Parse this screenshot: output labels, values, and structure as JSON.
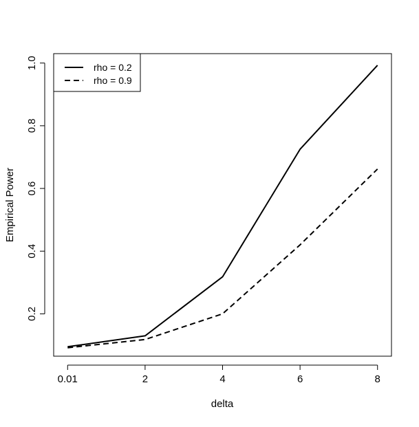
{
  "chart_data": {
    "type": "line",
    "title": "",
    "xlabel": "delta",
    "ylabel": "Empirical Power",
    "x_positions": [
      0,
      1,
      2,
      3,
      4
    ],
    "x_tick_labels": [
      "0.01",
      "2",
      "4",
      "6",
      "8"
    ],
    "y_ticks": [
      0.2,
      0.4,
      0.6,
      0.8,
      1.0
    ],
    "y_tick_labels": [
      "0.2",
      "0.4",
      "0.6",
      "0.8",
      "1.0"
    ],
    "xlim": [
      -0.18,
      4.18
    ],
    "ylim": [
      0.065,
      1.03
    ],
    "grid": false,
    "legend_position": "top-left",
    "series": [
      {
        "name": "rho = 0.2",
        "line_style": "solid",
        "color": "#000000",
        "x": [
          0,
          1,
          2,
          3,
          4
        ],
        "values": [
          0.095,
          0.13,
          0.318,
          0.725,
          0.993
        ]
      },
      {
        "name": "rho = 0.9",
        "line_style": "dashed",
        "color": "#000000",
        "x": [
          0,
          1,
          2,
          3,
          4
        ],
        "values": [
          0.092,
          0.118,
          0.2,
          0.42,
          0.662
        ]
      }
    ]
  }
}
